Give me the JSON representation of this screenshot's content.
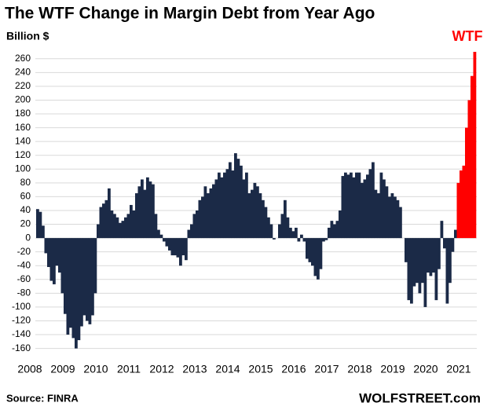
{
  "chart_data": {
    "type": "bar",
    "title": "The WTF Change in Margin Debt from Year Ago",
    "y_label": "Billion $",
    "annotation": {
      "text": "WTF",
      "color": "#ff0000"
    },
    "source": "Source: FINRA",
    "brand": "WOLFSTREET.com",
    "categories": [
      "2008",
      null,
      null,
      null,
      null,
      null,
      null,
      null,
      null,
      null,
      null,
      null,
      "2009",
      null,
      null,
      null,
      null,
      null,
      null,
      null,
      null,
      null,
      null,
      null,
      "2010",
      null,
      null,
      null,
      null,
      null,
      null,
      null,
      null,
      null,
      null,
      null,
      "2011",
      null,
      null,
      null,
      null,
      null,
      null,
      null,
      null,
      null,
      null,
      null,
      "2012",
      null,
      null,
      null,
      null,
      null,
      null,
      null,
      null,
      null,
      null,
      null,
      "2013",
      null,
      null,
      null,
      null,
      null,
      null,
      null,
      null,
      null,
      null,
      null,
      "2014",
      null,
      null,
      null,
      null,
      null,
      null,
      null,
      null,
      null,
      null,
      null,
      "2015",
      null,
      null,
      null,
      null,
      null,
      null,
      null,
      null,
      null,
      null,
      null,
      "2016",
      null,
      null,
      null,
      null,
      null,
      null,
      null,
      null,
      null,
      null,
      null,
      "2017",
      null,
      null,
      null,
      null,
      null,
      null,
      null,
      null,
      null,
      null,
      null,
      "2018",
      null,
      null,
      null,
      null,
      null,
      null,
      null,
      null,
      null,
      null,
      null,
      "2019",
      null,
      null,
      null,
      null,
      null,
      null,
      null,
      null,
      null,
      null,
      null,
      "2020",
      null,
      null,
      null,
      null,
      null,
      null,
      null,
      null,
      null,
      null,
      null,
      "2021",
      null,
      null,
      null
    ],
    "values": [
      42,
      38,
      18,
      -22,
      -42,
      -62,
      -67,
      -40,
      -50,
      -80,
      -110,
      -140,
      -130,
      -145,
      -160,
      -148,
      -128,
      -112,
      -120,
      -125,
      -112,
      -80,
      20,
      45,
      50,
      55,
      72,
      40,
      35,
      30,
      22,
      25,
      30,
      35,
      48,
      40,
      65,
      75,
      85,
      70,
      88,
      82,
      78,
      35,
      12,
      5,
      -5,
      -12,
      -18,
      -25,
      -25,
      -28,
      -40,
      -25,
      -32,
      12,
      20,
      35,
      40,
      55,
      60,
      75,
      65,
      72,
      78,
      85,
      95,
      88,
      95,
      100,
      110,
      98,
      123,
      115,
      105,
      85,
      95,
      65,
      70,
      80,
      75,
      65,
      55,
      45,
      30,
      20,
      -2,
      0,
      20,
      35,
      55,
      30,
      15,
      10,
      15,
      -5,
      5,
      -5,
      -30,
      -35,
      -40,
      -55,
      -60,
      -45,
      -5,
      -3,
      15,
      25,
      20,
      25,
      40,
      90,
      95,
      92,
      95,
      88,
      95,
      95,
      80,
      85,
      92,
      100,
      110,
      70,
      65,
      95,
      85,
      75,
      60,
      65,
      60,
      55,
      45,
      0,
      -35,
      -90,
      -95,
      -70,
      -65,
      -80,
      -65,
      -100,
      -50,
      -55,
      -50,
      -90,
      -45,
      25,
      -15,
      -95,
      -65,
      -20,
      12,
      80,
      98,
      105,
      160,
      200,
      235,
      270
    ],
    "colors": [
      "#1b2a47",
      "#1b2a47",
      "#1b2a47",
      "#1b2a47",
      "#1b2a47",
      "#1b2a47",
      "#1b2a47",
      "#1b2a47",
      "#1b2a47",
      "#1b2a47",
      "#1b2a47",
      "#1b2a47",
      "#1b2a47",
      "#1b2a47",
      "#1b2a47",
      "#1b2a47",
      "#1b2a47",
      "#1b2a47",
      "#1b2a47",
      "#1b2a47",
      "#1b2a47",
      "#1b2a47",
      "#1b2a47",
      "#1b2a47",
      "#1b2a47",
      "#1b2a47",
      "#1b2a47",
      "#1b2a47",
      "#1b2a47",
      "#1b2a47",
      "#1b2a47",
      "#1b2a47",
      "#1b2a47",
      "#1b2a47",
      "#1b2a47",
      "#1b2a47",
      "#1b2a47",
      "#1b2a47",
      "#1b2a47",
      "#1b2a47",
      "#1b2a47",
      "#1b2a47",
      "#1b2a47",
      "#1b2a47",
      "#1b2a47",
      "#1b2a47",
      "#1b2a47",
      "#1b2a47",
      "#1b2a47",
      "#1b2a47",
      "#1b2a47",
      "#1b2a47",
      "#1b2a47",
      "#1b2a47",
      "#1b2a47",
      "#1b2a47",
      "#1b2a47",
      "#1b2a47",
      "#1b2a47",
      "#1b2a47",
      "#1b2a47",
      "#1b2a47",
      "#1b2a47",
      "#1b2a47",
      "#1b2a47",
      "#1b2a47",
      "#1b2a47",
      "#1b2a47",
      "#1b2a47",
      "#1b2a47",
      "#1b2a47",
      "#1b2a47",
      "#1b2a47",
      "#1b2a47",
      "#1b2a47",
      "#1b2a47",
      "#1b2a47",
      "#1b2a47",
      "#1b2a47",
      "#1b2a47",
      "#1b2a47",
      "#1b2a47",
      "#1b2a47",
      "#1b2a47",
      "#1b2a47",
      "#1b2a47",
      "#1b2a47",
      "#1b2a47",
      "#1b2a47",
      "#1b2a47",
      "#1b2a47",
      "#1b2a47",
      "#1b2a47",
      "#1b2a47",
      "#1b2a47",
      "#1b2a47",
      "#1b2a47",
      "#1b2a47",
      "#1b2a47",
      "#1b2a47",
      "#1b2a47",
      "#1b2a47",
      "#1b2a47",
      "#1b2a47",
      "#1b2a47",
      "#1b2a47",
      "#1b2a47",
      "#1b2a47",
      "#1b2a47",
      "#1b2a47",
      "#1b2a47",
      "#1b2a47",
      "#1b2a47",
      "#1b2a47",
      "#1b2a47",
      "#1b2a47",
      "#1b2a47",
      "#1b2a47",
      "#1b2a47",
      "#1b2a47",
      "#1b2a47",
      "#1b2a47",
      "#1b2a47",
      "#1b2a47",
      "#1b2a47",
      "#1b2a47",
      "#1b2a47",
      "#1b2a47",
      "#1b2a47",
      "#1b2a47",
      "#1b2a47",
      "#1b2a47",
      "#1b2a47",
      "#1b2a47",
      "#1b2a47",
      "#1b2a47",
      "#1b2a47",
      "#1b2a47",
      "#1b2a47",
      "#1b2a47",
      "#1b2a47",
      "#1b2a47",
      "#1b2a47",
      "#1b2a47",
      "#1b2a47",
      "#1b2a47",
      "#1b2a47",
      "#1b2a47",
      "#1b2a47",
      "#1b2a47",
      "#1b2a47",
      "#1b2a47",
      "#1b2a47",
      "#ff0000",
      "#ff0000",
      "#ff0000",
      "#ff0000",
      "#ff0000",
      "#ff0000",
      "#ff0000"
    ],
    "ylim": [
      -165,
      270
    ],
    "yticks": [
      -160,
      -140,
      -120,
      -100,
      -80,
      -60,
      -40,
      -20,
      0,
      20,
      40,
      60,
      80,
      100,
      120,
      140,
      160,
      180,
      200,
      220,
      240,
      260
    ],
    "grid": true
  }
}
